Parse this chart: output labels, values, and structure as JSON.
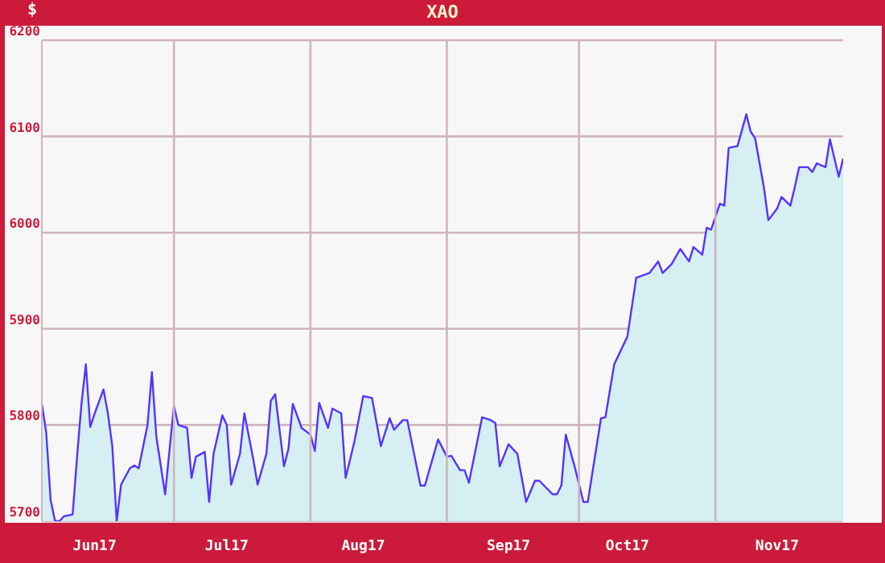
{
  "chart_data": {
    "type": "area",
    "title": "XAO",
    "ylabel": "$",
    "x": [
      "2017-06-01",
      "2017-06-02",
      "2017-06-03",
      "2017-06-04",
      "2017-06-05",
      "2017-06-06",
      "2017-06-08",
      "2017-06-09",
      "2017-06-10",
      "2017-06-11",
      "2017-06-12",
      "2017-06-13",
      "2017-06-15",
      "2017-06-16",
      "2017-06-17",
      "2017-06-18",
      "2017-06-19",
      "2017-06-21",
      "2017-06-22",
      "2017-06-23",
      "2017-06-25",
      "2017-06-26",
      "2017-06-27",
      "2017-06-29",
      "2017-07-01",
      "2017-07-02",
      "2017-07-04",
      "2017-07-05",
      "2017-07-06",
      "2017-07-08",
      "2017-07-09",
      "2017-07-10",
      "2017-07-12",
      "2017-07-13",
      "2017-07-14",
      "2017-07-16",
      "2017-07-17",
      "2017-07-19",
      "2017-07-20",
      "2017-07-22",
      "2017-07-23",
      "2017-07-24",
      "2017-07-26",
      "2017-07-27",
      "2017-07-28",
      "2017-07-30",
      "2017-08-01",
      "2017-08-02",
      "2017-08-03",
      "2017-08-05",
      "2017-08-06",
      "2017-08-08",
      "2017-08-09",
      "2017-08-11",
      "2017-08-13",
      "2017-08-15",
      "2017-08-17",
      "2017-08-19",
      "2017-08-20",
      "2017-08-22",
      "2017-08-23",
      "2017-08-26",
      "2017-08-27",
      "2017-08-30",
      "2017-09-01",
      "2017-09-02",
      "2017-09-04",
      "2017-09-05",
      "2017-09-06",
      "2017-09-09",
      "2017-09-11",
      "2017-09-12",
      "2017-09-13",
      "2017-09-15",
      "2017-09-17",
      "2017-09-19",
      "2017-09-21",
      "2017-09-22",
      "2017-09-25",
      "2017-09-26",
      "2017-09-27",
      "2017-09-28",
      "2017-09-30",
      "2017-10-02",
      "2017-10-03",
      "2017-10-06",
      "2017-10-07",
      "2017-10-09",
      "2017-10-12",
      "2017-10-14",
      "2017-10-17",
      "2017-10-19",
      "2017-10-20",
      "2017-10-22",
      "2017-10-24",
      "2017-10-26",
      "2017-10-27",
      "2017-10-29",
      "2017-10-30",
      "2017-10-31",
      "2017-11-02",
      "2017-11-03",
      "2017-11-04",
      "2017-11-06",
      "2017-11-08",
      "2017-11-09",
      "2017-11-10",
      "2017-11-12",
      "2017-11-13",
      "2017-11-15",
      "2017-11-16",
      "2017-11-18",
      "2017-11-19",
      "2017-11-20",
      "2017-11-22",
      "2017-11-23",
      "2017-11-24",
      "2017-11-26",
      "2017-11-27",
      "2017-11-29",
      "2017-11-30"
    ],
    "series": [
      {
        "color": "#5533ff",
        "values": [
          5822,
          5792,
          5722,
          5700,
          5700,
          5705,
          5707,
          5767,
          5822,
          5863,
          5798,
          5812,
          5837,
          5812,
          5778,
          5700,
          5738,
          5755,
          5758,
          5755,
          5800,
          5855,
          5788,
          5728,
          5820,
          5800,
          5797,
          5745,
          5767,
          5772,
          5720,
          5770,
          5810,
          5800,
          5738,
          5770,
          5812,
          5765,
          5738,
          5770,
          5825,
          5832,
          5757,
          5775,
          5822,
          5797,
          5790,
          5773,
          5823,
          5797,
          5817,
          5812,
          5745,
          5783,
          5830,
          5828,
          5778,
          5807,
          5795,
          5805,
          5805,
          5737,
          5737,
          5785,
          5767,
          5768,
          5753,
          5753,
          5740,
          5808,
          5805,
          5802,
          5757,
          5780,
          5770,
          5720,
          5742,
          5742,
          5728,
          5728,
          5737,
          5790,
          5757,
          5720,
          5720,
          5807,
          5808,
          5863,
          5892,
          5953,
          5958,
          5970,
          5958,
          5967,
          5983,
          5970,
          5985,
          5977,
          6005,
          6003,
          6030,
          6028,
          6088,
          6090,
          6123,
          6105,
          6098,
          6047,
          6013,
          6025,
          6037,
          6028,
          6047,
          6068,
          6068,
          6063,
          6072,
          6068,
          6097,
          6058,
          6077
        ]
      }
    ],
    "xlim": [
      "2017-06-01",
      "2017-11-30"
    ],
    "xticks": [
      {
        "value": "2017-06-13",
        "label": "Jun17"
      },
      {
        "value": "2017-07-13",
        "label": "Jul17"
      },
      {
        "value": "2017-08-13",
        "label": "Aug17"
      },
      {
        "value": "2017-09-15",
        "label": "Sep17"
      },
      {
        "value": "2017-10-12",
        "label": "Oct17"
      },
      {
        "value": "2017-11-15",
        "label": "Nov17"
      }
    ],
    "ylim": [
      5700,
      6200
    ],
    "yticks": [
      5700,
      5800,
      5900,
      6000,
      6100,
      6200
    ],
    "grid": "y",
    "ref_lines": [
      {
        "axis": "x",
        "value": "2017-07-01",
        "color": "#d0b4bc"
      },
      {
        "axis": "x",
        "value": "2017-08-01",
        "color": "#d0b4bc"
      },
      {
        "axis": "x",
        "value": "2017-09-01",
        "color": "#d0b4bc"
      },
      {
        "axis": "x",
        "value": "2017-10-01",
        "color": "#d0b4bc"
      },
      {
        "axis": "x",
        "value": "2017-11-01",
        "color": "#d0b4bc"
      }
    ]
  }
}
